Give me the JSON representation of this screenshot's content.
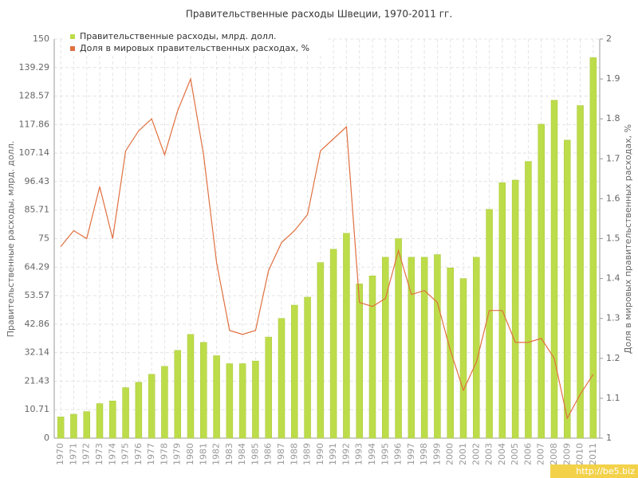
{
  "chart_data": {
    "type": "bar_line",
    "title": "Правительственные расходы Швеции, 1970-2011 гг.",
    "ylabel": "Правительственные расходы, млрд. долл.",
    "y2label": "Доля в мировых правительственных расходах, %",
    "categories": [
      "1970",
      "1971",
      "1972",
      "1973",
      "1974",
      "1975",
      "1976",
      "1977",
      "1978",
      "1979",
      "1980",
      "1981",
      "1982",
      "1983",
      "1984",
      "1985",
      "1986",
      "1987",
      "1988",
      "1989",
      "1990",
      "1991",
      "1992",
      "1993",
      "1994",
      "1995",
      "1996",
      "1997",
      "1998",
      "1999",
      "2000",
      "2001",
      "2002",
      "2003",
      "2004",
      "2005",
      "2006",
      "2007",
      "2008",
      "2009",
      "2010",
      "2011"
    ],
    "series": [
      {
        "name": "Правительственные расходы, млрд. долл.",
        "color": "#bddc4a",
        "type": "bar",
        "values": [
          8,
          9,
          10,
          13,
          14,
          19,
          21,
          24,
          27,
          33,
          39,
          36,
          31,
          28,
          28,
          29,
          38,
          45,
          50,
          53,
          66,
          71,
          77,
          58,
          61,
          68,
          75,
          68,
          68,
          69,
          64,
          60,
          68,
          86,
          96,
          97,
          104,
          118,
          127,
          112,
          125,
          143
        ]
      },
      {
        "name": "Доля в мировых правительственных расходах, %",
        "color": "#e07040",
        "type": "line",
        "axis": "y2",
        "values": [
          1.48,
          1.52,
          1.5,
          1.63,
          1.5,
          1.72,
          1.77,
          1.8,
          1.71,
          1.82,
          1.9,
          1.71,
          1.44,
          1.27,
          1.26,
          1.27,
          1.42,
          1.49,
          1.52,
          1.56,
          1.72,
          1.75,
          1.78,
          1.34,
          1.33,
          1.35,
          1.47,
          1.36,
          1.37,
          1.34,
          1.22,
          1.12,
          1.19,
          1.32,
          1.32,
          1.24,
          1.24,
          1.25,
          1.2,
          1.05,
          1.11,
          1.16
        ]
      }
    ],
    "ylim": [
      0,
      150
    ],
    "yticks": [
      0,
      10.71,
      21.43,
      32.14,
      42.86,
      53.57,
      64.29,
      75,
      85.71,
      96.43,
      107.14,
      117.86,
      128.57,
      139.29,
      150
    ],
    "y2lim": [
      1,
      2
    ],
    "y2ticks": [
      1,
      1.1,
      1.2,
      1.3,
      1.4,
      1.5,
      1.6,
      1.7,
      1.8,
      1.9,
      2
    ],
    "grid": true,
    "legend": "top-left",
    "watermark": "http://be5.biz"
  }
}
